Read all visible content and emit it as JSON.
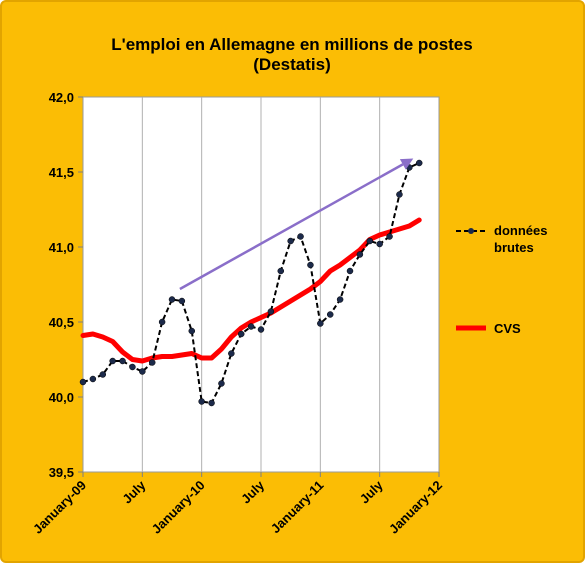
{
  "chart_data": {
    "type": "line",
    "title_lines": [
      "L'emploi en Allemagne en millions de postes",
      "(Destatis)"
    ],
    "xlabel": "",
    "ylabel": "",
    "ylim": [
      39.5,
      42.0
    ],
    "y_ticks": [
      "39,5",
      "40,0",
      "40,5",
      "41,0",
      "41,5",
      "42,0"
    ],
    "x_ticks": [
      "January-09",
      "July",
      "January-10",
      "July",
      "January-11",
      "July",
      "January-12"
    ],
    "grid": "vertical lines",
    "legend_position": "right",
    "annotation": "upward trend arrow",
    "series": [
      {
        "name": "données brutes",
        "legend_lines": [
          "données",
          "brutes"
        ],
        "color": "#000000",
        "style": "dashed with dot markers",
        "values": [
          40.1,
          40.12,
          40.15,
          40.24,
          40.24,
          40.2,
          40.17,
          40.23,
          40.5,
          40.65,
          40.64,
          40.44,
          39.97,
          39.96,
          40.09,
          40.29,
          40.42,
          40.47,
          40.45,
          40.57,
          40.84,
          41.04,
          41.07,
          40.88,
          40.49,
          40.55,
          40.65,
          40.84,
          40.95,
          41.04,
          41.02,
          41.07,
          41.35,
          41.53,
          41.56
        ]
      },
      {
        "name": "CVS",
        "legend_lines": [
          "CVS"
        ],
        "color": "#ff0000",
        "style": "thick line",
        "values": [
          40.41,
          40.42,
          40.4,
          40.37,
          40.3,
          40.25,
          40.24,
          40.26,
          40.27,
          40.27,
          40.28,
          40.29,
          40.26,
          40.26,
          40.32,
          40.4,
          40.46,
          40.5,
          40.53,
          40.56,
          40.6,
          40.64,
          40.68,
          40.72,
          40.77,
          40.84,
          40.88,
          40.93,
          40.98,
          41.05,
          41.08,
          41.1,
          41.12,
          41.14,
          41.18
        ]
      }
    ]
  },
  "colors": {
    "background": "#fbbd05",
    "plot_area": "#ffffff",
    "trend_arrow": "#8a6ec9"
  }
}
